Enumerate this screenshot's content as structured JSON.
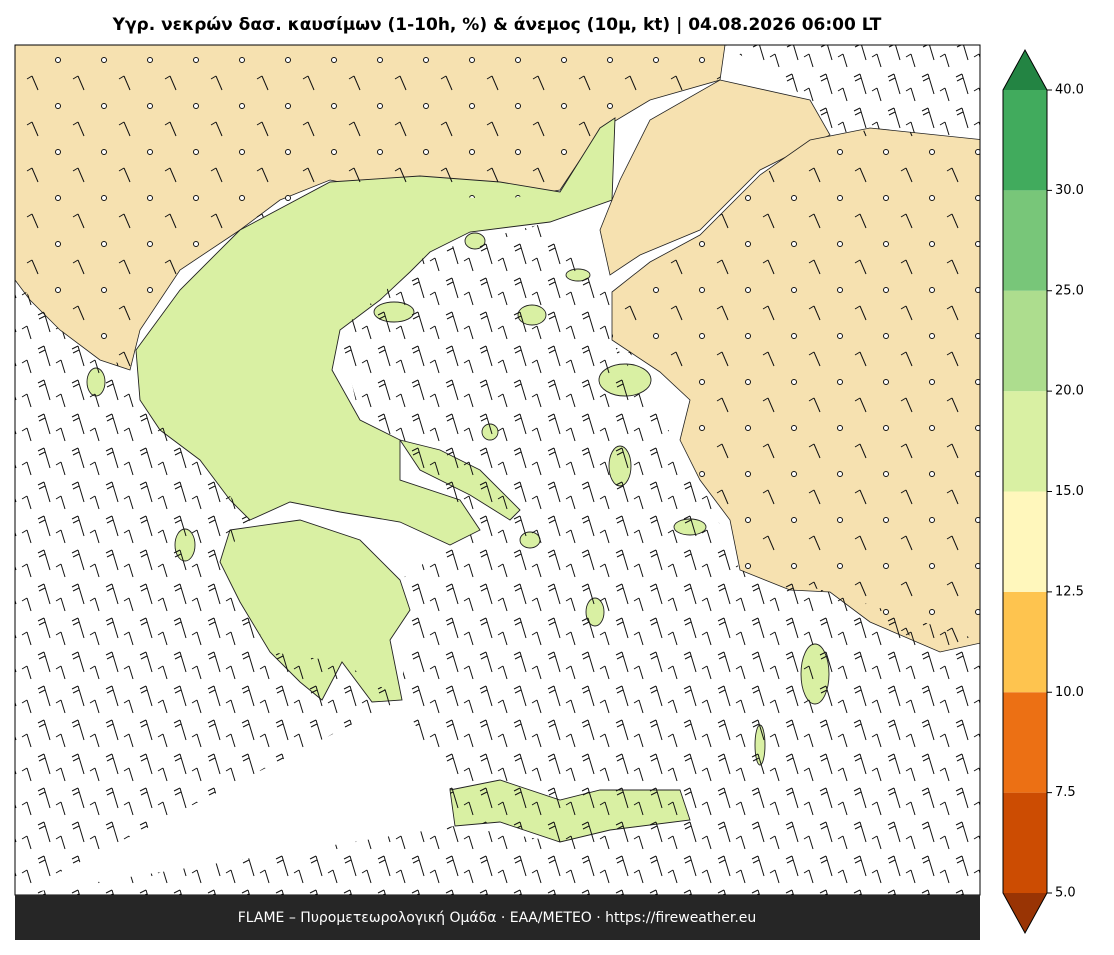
{
  "title": "Υγρ. νεκρών δασ. καυσίμων (1-10h, %) & άνεμος (10μ, kt)  |  04.08.2026 06:00 LT",
  "footer": "FLAME – Πυρομετεωρολογική Ομάδα · ΕΑΑ/METEO · https://fireweather.eu",
  "colorbar": {
    "ticks": [
      5,
      7.5,
      10,
      12.5,
      15,
      20,
      25,
      30,
      {
        "value": 40,
        "label": "40.0"
      }
    ],
    "tick_labels": [
      "5.0",
      "7.5",
      "10.0",
      "12.5",
      "15.0",
      "20.0",
      "25.0",
      "30.0",
      "40.0"
    ],
    "colors": [
      "#cc4c02",
      "#ec7014",
      "#fec44f",
      "#fff7bc",
      "#d9f0a3",
      "#addd8e",
      "#78c679",
      "#41ab5d"
    ],
    "under_color": "#993404",
    "over_color": "#238443"
  }
}
